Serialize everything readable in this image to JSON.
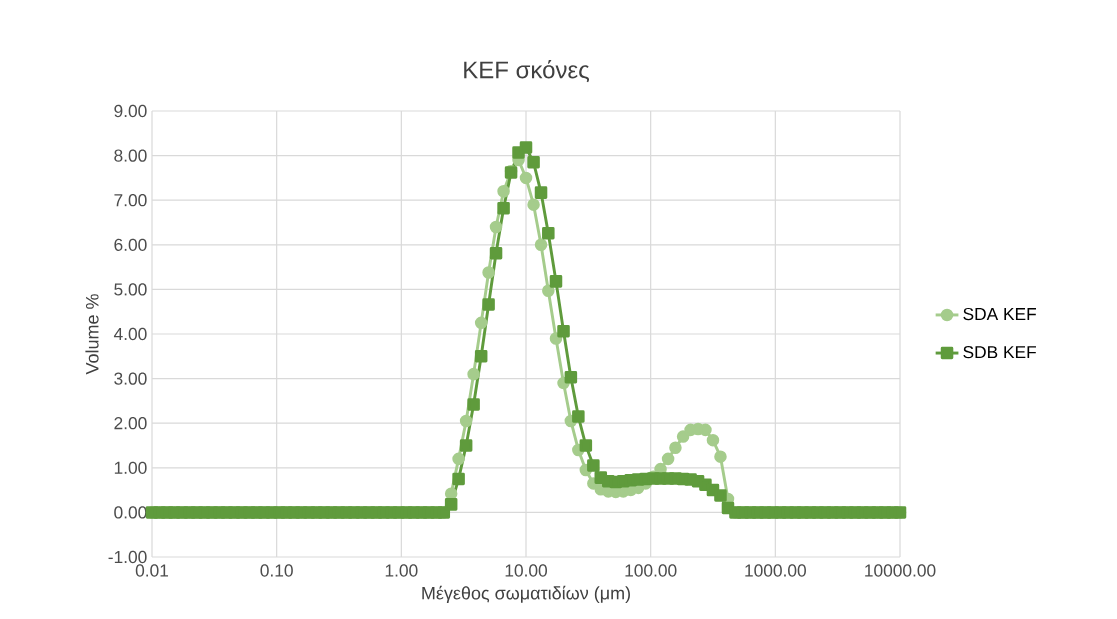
{
  "chart_data": {
    "type": "line",
    "title": "KEF σκόνες",
    "xlabel": "Μέγεθος σωματιδίων (μm)",
    "ylabel": "Volume %",
    "log": "x",
    "grid": true,
    "legend": "right",
    "xlim": [
      0.01,
      10000
    ],
    "ylim": [
      -1,
      9
    ],
    "xticks": [
      {
        "value": 0.01,
        "label": "0.01"
      },
      {
        "value": 0.1,
        "label": "0.10"
      },
      {
        "value": 1,
        "label": "1.00"
      },
      {
        "value": 10,
        "label": "10.00"
      },
      {
        "value": 100,
        "label": "100.00"
      },
      {
        "value": 1000,
        "label": "1000.00"
      },
      {
        "value": 10000,
        "label": "10000.00"
      }
    ],
    "yticks": [
      {
        "value": -1,
        "label": "-1.00"
      },
      {
        "value": 0,
        "label": "0.00"
      },
      {
        "value": 1,
        "label": "1.00"
      },
      {
        "value": 2,
        "label": "2.00"
      },
      {
        "value": 3,
        "label": "3.00"
      },
      {
        "value": 4,
        "label": "4.00"
      },
      {
        "value": 5,
        "label": "5.00"
      },
      {
        "value": 6,
        "label": "6.00"
      },
      {
        "value": 7,
        "label": "7.00"
      },
      {
        "value": 8,
        "label": "8.00"
      },
      {
        "value": 9,
        "label": "9.00"
      }
    ],
    "x": [
      0.01,
      0.0115,
      0.0132,
      0.0151,
      0.0174,
      0.02,
      0.0229,
      0.0263,
      0.0302,
      0.0347,
      0.0398,
      0.0457,
      0.0525,
      0.0603,
      0.0692,
      0.0794,
      0.0912,
      0.105,
      0.12,
      0.138,
      0.158,
      0.182,
      0.209,
      0.24,
      0.275,
      0.316,
      0.363,
      0.417,
      0.479,
      0.55,
      0.631,
      0.724,
      0.832,
      0.955,
      1.1,
      1.26,
      1.45,
      1.66,
      1.91,
      2.19,
      2.51,
      2.88,
      3.31,
      3.8,
      4.37,
      5.01,
      5.75,
      6.61,
      7.59,
      8.71,
      10,
      11.5,
      13.2,
      15.1,
      17.4,
      20,
      22.9,
      26.3,
      30.2,
      34.7,
      39.8,
      45.7,
      52.5,
      60.3,
      69.2,
      79.4,
      91.2,
      105,
      120,
      138,
      158,
      182,
      209,
      240,
      275,
      316,
      363,
      417,
      479,
      550,
      631,
      724,
      832,
      955,
      1100,
      1260,
      1450,
      1660,
      1910,
      2190,
      2510,
      2880,
      3310,
      3800,
      4370,
      5010,
      5750,
      6610,
      7590,
      8710,
      10000
    ],
    "series": [
      {
        "name": "SDA KEF",
        "color": "#a5cc8c",
        "marker": "circle",
        "values": [
          0,
          0,
          0,
          0,
          0,
          0,
          0,
          0,
          0,
          0,
          0,
          0,
          0,
          0,
          0,
          0,
          0,
          0,
          0,
          0,
          0,
          0,
          0,
          0,
          0,
          0,
          0,
          0,
          0,
          0,
          0,
          0,
          0,
          0,
          0,
          0,
          0,
          0,
          0,
          0,
          0.42,
          1.2,
          2.05,
          3.1,
          4.25,
          5.38,
          6.4,
          7.2,
          7.65,
          7.9,
          7.5,
          6.9,
          6.0,
          4.97,
          3.9,
          2.9,
          2.05,
          1.4,
          0.95,
          0.65,
          0.52,
          0.47,
          0.46,
          0.47,
          0.5,
          0.55,
          0.65,
          0.8,
          0.97,
          1.2,
          1.45,
          1.7,
          1.85,
          1.87,
          1.85,
          1.62,
          1.25,
          0.3,
          0,
          0,
          0,
          0,
          0,
          0,
          0,
          0,
          0,
          0,
          0,
          0,
          0,
          0,
          0,
          0,
          0,
          0,
          0,
          0,
          0,
          0,
          0
        ]
      },
      {
        "name": "SDB KEF",
        "color": "#5f9b3c",
        "marker": "square",
        "values": [
          0,
          0,
          0,
          0,
          0,
          0,
          0,
          0,
          0,
          0,
          0,
          0,
          0,
          0,
          0,
          0,
          0,
          0,
          0,
          0,
          0,
          0,
          0,
          0,
          0,
          0,
          0,
          0,
          0,
          0,
          0,
          0,
          0,
          0,
          0,
          0,
          0,
          0,
          0,
          0,
          0.18,
          0.75,
          1.5,
          2.42,
          3.5,
          4.66,
          5.81,
          6.82,
          7.62,
          8.07,
          8.18,
          7.85,
          7.17,
          6.26,
          5.18,
          4.06,
          3.03,
          2.15,
          1.5,
          1.05,
          0.78,
          0.7,
          0.68,
          0.7,
          0.72,
          0.74,
          0.75,
          0.76,
          0.76,
          0.76,
          0.76,
          0.75,
          0.74,
          0.7,
          0.62,
          0.5,
          0.38,
          0.1,
          0,
          0,
          0,
          0,
          0,
          0,
          0,
          0,
          0,
          0,
          0,
          0,
          0,
          0,
          0,
          0,
          0,
          0,
          0,
          0,
          0,
          0,
          0
        ]
      }
    ]
  }
}
